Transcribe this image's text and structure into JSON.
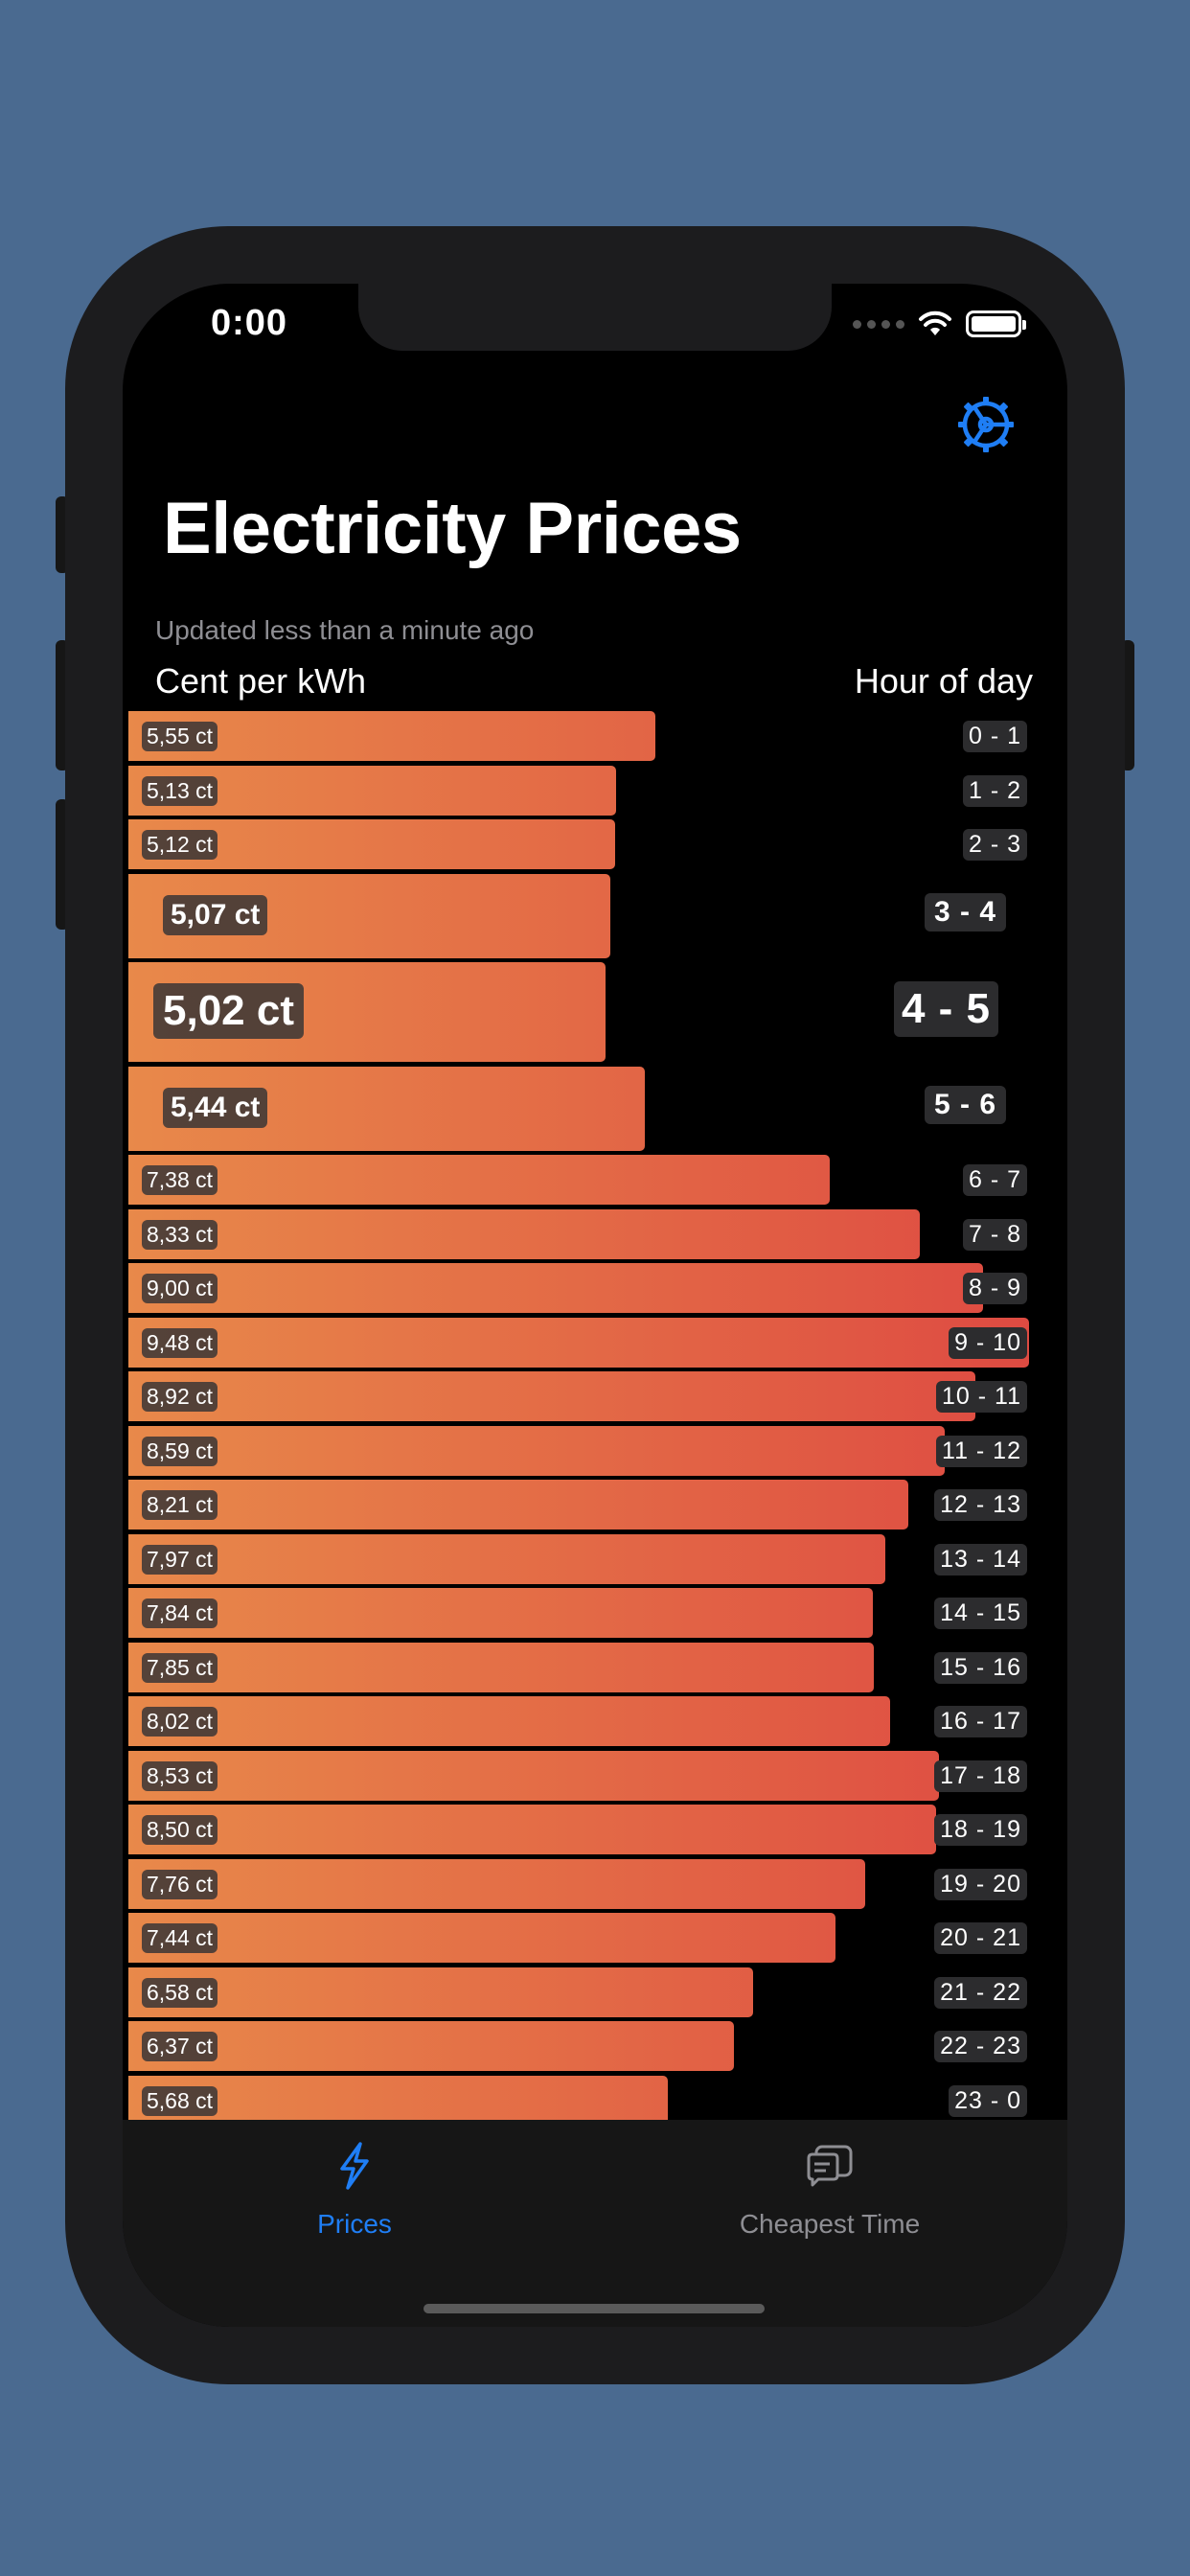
{
  "status_bar": {
    "time": "0:00"
  },
  "header": {
    "title": "Electricity Prices",
    "updated": "Updated less than a minute ago",
    "unit_label": "Cent per kWh",
    "hour_label": "Hour of day"
  },
  "colors": {
    "accent": "#1f7ef5",
    "bar_gradient_start": "#e8894a",
    "bar_gradient_end": "#de4a42",
    "background": "#000000"
  },
  "icons": {
    "settings": "gear-icon",
    "prices_tab": "bolt-icon",
    "cheapest_tab": "chat-bubble-icon"
  },
  "chart_data": {
    "type": "bar",
    "orientation": "horizontal",
    "unit": "ct",
    "highlighted_hours": [
      "3 - 4",
      "4 - 5",
      "5 - 6"
    ],
    "current_hour": "4 - 5",
    "rows": [
      {
        "price": "5,55 ct",
        "value": 5.55,
        "hour": "0 - 1"
      },
      {
        "price": "5,13 ct",
        "value": 5.13,
        "hour": "1 - 2"
      },
      {
        "price": "5,12 ct",
        "value": 5.12,
        "hour": "2 - 3"
      },
      {
        "price": "5,07 ct",
        "value": 5.07,
        "hour": "3 - 4"
      },
      {
        "price": "5,02 ct",
        "value": 5.02,
        "hour": "4 - 5"
      },
      {
        "price": "5,44 ct",
        "value": 5.44,
        "hour": "5 - 6"
      },
      {
        "price": "7,38 ct",
        "value": 7.38,
        "hour": "6 - 7"
      },
      {
        "price": "8,33 ct",
        "value": 8.33,
        "hour": "7 - 8"
      },
      {
        "price": "9,00 ct",
        "value": 9.0,
        "hour": "8 - 9"
      },
      {
        "price": "9,48 ct",
        "value": 9.48,
        "hour": "9 - 10"
      },
      {
        "price": "8,92 ct",
        "value": 8.92,
        "hour": "10 - 11"
      },
      {
        "price": "8,59 ct",
        "value": 8.59,
        "hour": "11 - 12"
      },
      {
        "price": "8,21 ct",
        "value": 8.21,
        "hour": "12 - 13"
      },
      {
        "price": "7,97 ct",
        "value": 7.97,
        "hour": "13 - 14"
      },
      {
        "price": "7,84 ct",
        "value": 7.84,
        "hour": "14 - 15"
      },
      {
        "price": "7,85 ct",
        "value": 7.85,
        "hour": "15 - 16"
      },
      {
        "price": "8,02 ct",
        "value": 8.02,
        "hour": "16 - 17"
      },
      {
        "price": "8,53 ct",
        "value": 8.53,
        "hour": "17 - 18"
      },
      {
        "price": "8,50 ct",
        "value": 8.5,
        "hour": "18 - 19"
      },
      {
        "price": "7,76 ct",
        "value": 7.76,
        "hour": "19 - 20"
      },
      {
        "price": "7,44 ct",
        "value": 7.44,
        "hour": "20 - 21"
      },
      {
        "price": "6,58 ct",
        "value": 6.58,
        "hour": "21 - 22"
      },
      {
        "price": "6,37 ct",
        "value": 6.37,
        "hour": "22 - 23"
      },
      {
        "price": "5,68 ct",
        "value": 5.68,
        "hour": "23 - 0"
      }
    ]
  },
  "tabbar": {
    "prices_label": "Prices",
    "cheapest_label": "Cheapest Time"
  }
}
